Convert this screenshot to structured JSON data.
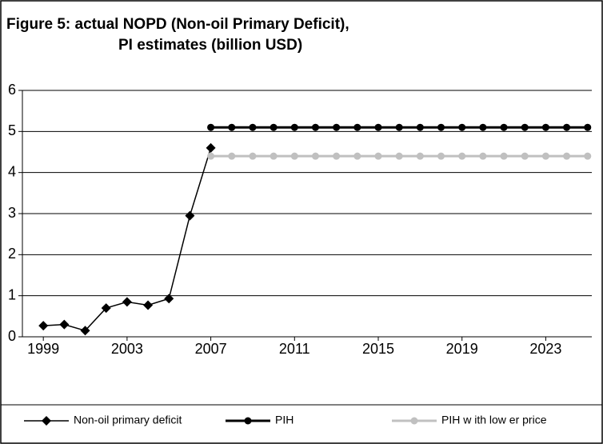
{
  "chart_data": {
    "type": "line",
    "title": [
      "Figure 5: actual NOPD (Non-oil Primary Deficit),",
      "PI estimates (billion USD)"
    ],
    "x": [
      1999,
      2000,
      2001,
      2002,
      2003,
      2004,
      2005,
      2006,
      2007,
      2008,
      2009,
      2010,
      2011,
      2012,
      2013,
      2014,
      2015,
      2016,
      2017,
      2018,
      2019,
      2020,
      2021,
      2022,
      2023,
      2024,
      2025
    ],
    "series": [
      {
        "name": "Non-oil primary deficit",
        "color": "#000000",
        "marker": "diamond",
        "values": [
          0.27,
          0.3,
          0.15,
          0.7,
          0.85,
          0.77,
          0.93,
          2.95,
          4.6,
          null,
          null,
          null,
          null,
          null,
          null,
          null,
          null,
          null,
          null,
          null,
          null,
          null,
          null,
          null,
          null,
          null,
          null
        ]
      },
      {
        "name": "PIH",
        "color": "#000000",
        "marker": "circle",
        "values": [
          null,
          null,
          null,
          null,
          null,
          null,
          null,
          null,
          5.1,
          5.1,
          5.1,
          5.1,
          5.1,
          5.1,
          5.1,
          5.1,
          5.1,
          5.1,
          5.1,
          5.1,
          5.1,
          5.1,
          5.1,
          5.1,
          5.1,
          5.1,
          5.1
        ]
      },
      {
        "name": "PIH w ith low er price",
        "color": "#c0c0c0",
        "marker": "circle",
        "values": [
          null,
          null,
          null,
          null,
          null,
          null,
          null,
          null,
          4.4,
          4.4,
          4.4,
          4.4,
          4.4,
          4.4,
          4.4,
          4.4,
          4.4,
          4.4,
          4.4,
          4.4,
          4.4,
          4.4,
          4.4,
          4.4,
          4.4,
          4.4,
          4.4
        ]
      }
    ],
    "xlim": [
      1998,
      2025.2
    ],
    "xticks": [
      1999,
      2003,
      2007,
      2011,
      2015,
      2019,
      2023
    ],
    "ylim": [
      0,
      6
    ],
    "yticks": [
      0,
      1,
      2,
      3,
      4,
      5,
      6
    ],
    "grid": true,
    "legend": "bottom"
  }
}
